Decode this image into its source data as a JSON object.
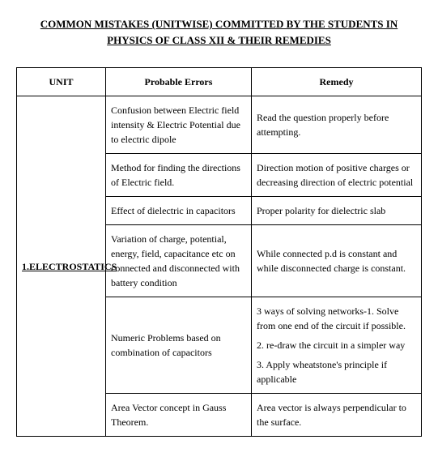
{
  "title_line1": "COMMON MISTAKES (UNITWISE) COMMITTED BY THE STUDENTS  IN",
  "title_line2": "PHYSICS OF CLASS XII & THEIR REMEDIES",
  "headers": {
    "unit": "UNIT",
    "errors": "Probable Errors",
    "remedy": "Remedy"
  },
  "unit_label": "1.ELECTROSTATICS",
  "rows": [
    {
      "error": "Confusion between Electric field intensity & Electric Potential due to electric dipole",
      "remedy": "Read the question properly before attempting."
    },
    {
      "error": "Method for finding the directions of Electric field.",
      "remedy": "Direction motion of positive charges or decreasing direction of electric potential"
    },
    {
      "error": "Effect of dielectric in capacitors",
      "remedy": "Proper polarity for dielectric slab"
    },
    {
      "error": "Variation of charge, potential, energy, field, capacitance etc on connected and disconnected with battery condition",
      "remedy": "While connected p.d is constant and while disconnected charge is constant."
    },
    {
      "error": "Numeric Problems based on combination of capacitors",
      "remedy_parts": [
        "3 ways of solving networks-1. Solve from one end of the circuit if possible.",
        "2. re-draw the circuit in a simpler way",
        "3. Apply wheatstone's principle if applicable"
      ]
    },
    {
      "error": "Area Vector concept in Gauss Theorem.",
      "remedy": "Area vector is always perpendicular to the surface."
    }
  ]
}
